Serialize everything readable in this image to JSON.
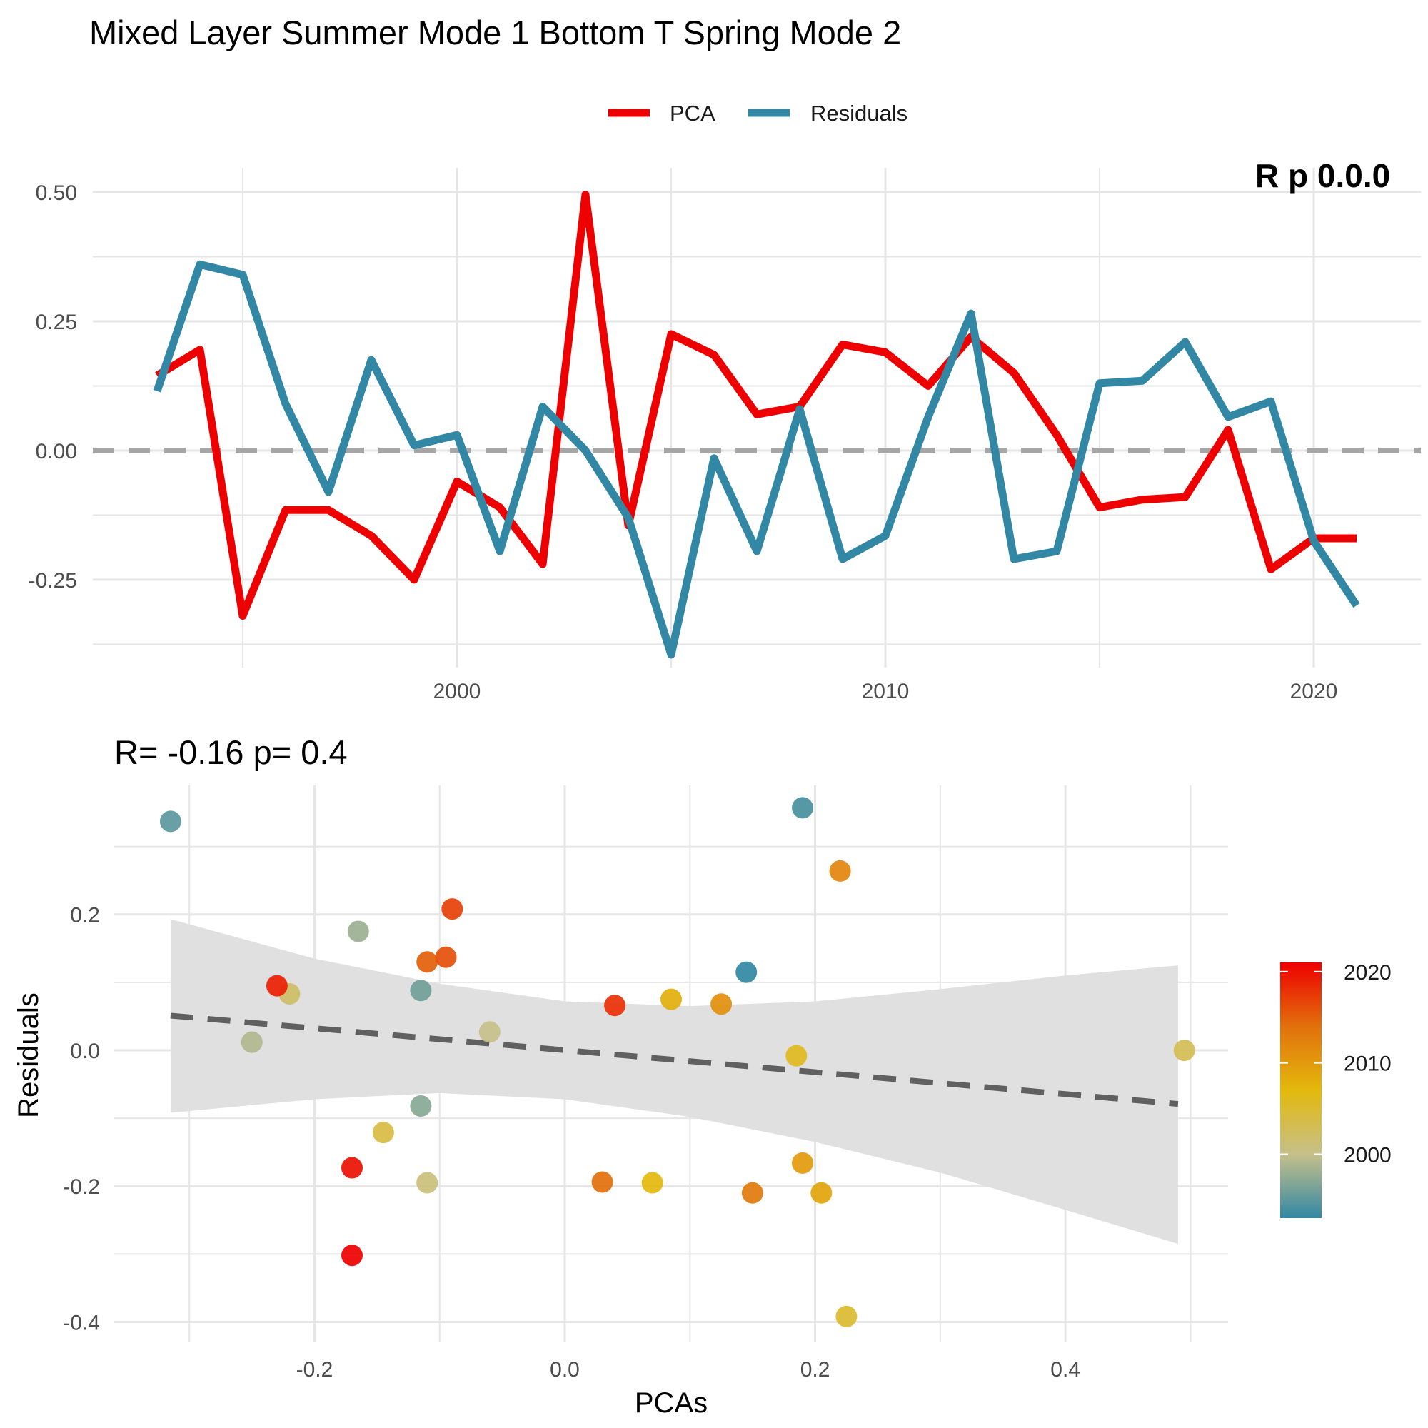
{
  "title": "Mixed Layer Summer Mode 1 Bottom T Spring Mode 2",
  "colors": {
    "pca": "#EE0000",
    "residuals": "#3288A4",
    "zero_line": "#A6A6A6",
    "grid": "#E6E6E6",
    "ribbon": "#E0E0E0",
    "fit_line": "#606060"
  },
  "chart_data": [
    {
      "type": "line",
      "title": "",
      "xlabel": "",
      "ylabel": "",
      "corner_annotation": "R  p  0.0.0",
      "xlim": [
        1991.5,
        2022.5
      ],
      "ylim": [
        -0.42,
        0.54
      ],
      "x_ticks": [
        2000,
        2010,
        2020
      ],
      "y_ticks": [
        -0.25,
        0.0,
        0.25,
        0.5
      ],
      "y_tick_labels": [
        "-0.25",
        "0.00",
        "0.25",
        "0.50"
      ],
      "legend": {
        "position": "top",
        "entries": [
          "PCA",
          "Residuals"
        ]
      },
      "grid": true,
      "zero_line": "dashed",
      "x": [
        1993,
        1994,
        1995,
        1996,
        1997,
        1998,
        1999,
        2000,
        2001,
        2002,
        2003,
        2004,
        2005,
        2006,
        2007,
        2008,
        2009,
        2010,
        2011,
        2012,
        2013,
        2014,
        2015,
        2016,
        2017,
        2018,
        2019,
        2020,
        2021
      ],
      "series": [
        {
          "name": "PCA",
          "values": [
            0.145,
            0.195,
            -0.32,
            -0.115,
            -0.115,
            -0.165,
            -0.25,
            -0.06,
            -0.11,
            -0.22,
            0.495,
            -0.145,
            0.225,
            0.185,
            0.07,
            0.085,
            0.205,
            0.19,
            0.125,
            0.22,
            0.15,
            0.03,
            -0.11,
            -0.095,
            -0.09,
            0.04,
            -0.23,
            -0.17,
            -0.17
          ]
        },
        {
          "name": "Residuals",
          "values": [
            0.115,
            0.36,
            0.34,
            0.09,
            -0.08,
            0.175,
            0.01,
            0.03,
            -0.195,
            0.085,
            0.0,
            -0.13,
            -0.395,
            -0.015,
            -0.195,
            0.08,
            -0.21,
            -0.165,
            0.065,
            0.265,
            -0.21,
            -0.195,
            0.13,
            0.135,
            0.21,
            0.065,
            0.095,
            -0.175,
            -0.3
          ]
        }
      ]
    },
    {
      "type": "scatter",
      "title": "R= -0.16  p= 0.4",
      "xlabel": "PCAs",
      "ylabel": "Residuals",
      "xlim": [
        -0.36,
        0.53
      ],
      "ylim": [
        -0.43,
        0.39
      ],
      "x_ticks": [
        -0.2,
        0.0,
        0.2,
        0.4
      ],
      "x_tick_labels": [
        "-0.2",
        "0.0",
        "0.2",
        "0.4"
      ],
      "y_ticks": [
        -0.4,
        -0.2,
        0.0,
        0.2
      ],
      "y_tick_labels": [
        "-0.4",
        "-0.2",
        "0.0",
        "0.2"
      ],
      "grid": true,
      "fit_line": {
        "x": [
          -0.315,
          0.49
        ],
        "y": [
          0.051,
          -0.079
        ],
        "style": "dashed"
      },
      "confidence_band": {
        "x": [
          -0.315,
          -0.2,
          -0.1,
          0.0,
          0.1,
          0.2,
          0.3,
          0.4,
          0.49
        ],
        "upper": [
          0.193,
          0.135,
          0.098,
          0.072,
          0.065,
          0.072,
          0.09,
          0.11,
          0.125
        ],
        "lower": [
          -0.092,
          -0.072,
          -0.063,
          -0.072,
          -0.098,
          -0.135,
          -0.18,
          -0.235,
          -0.285
        ]
      },
      "colorbar": {
        "label_ticks": [
          2000,
          2010,
          2020
        ],
        "range": [
          1993,
          2021
        ],
        "colors": [
          "#3288A4",
          "#C6C08A",
          "#E3B90C",
          "#E2700C",
          "#EE0000"
        ]
      },
      "points": [
        {
          "x": 0.145,
          "y": 0.115,
          "year": 1993
        },
        {
          "x": 0.19,
          "y": 0.357,
          "year": 1994
        },
        {
          "x": -0.315,
          "y": 0.337,
          "year": 1995
        },
        {
          "x": -0.115,
          "y": 0.088,
          "year": 1996
        },
        {
          "x": -0.115,
          "y": -0.082,
          "year": 1997
        },
        {
          "x": -0.165,
          "y": 0.175,
          "year": 1998
        },
        {
          "x": -0.25,
          "y": 0.012,
          "year": 1999
        },
        {
          "x": -0.06,
          "y": 0.027,
          "year": 2000
        },
        {
          "x": -0.11,
          "y": -0.195,
          "year": 2001
        },
        {
          "x": -0.22,
          "y": 0.083,
          "year": 2002
        },
        {
          "x": 0.495,
          "y": 0.0,
          "year": 2003
        },
        {
          "x": -0.145,
          "y": -0.121,
          "year": 2004
        },
        {
          "x": 0.225,
          "y": -0.392,
          "year": 2005
        },
        {
          "x": 0.185,
          "y": -0.008,
          "year": 2006
        },
        {
          "x": 0.07,
          "y": -0.195,
          "year": 2007
        },
        {
          "x": 0.085,
          "y": 0.075,
          "year": 2008
        },
        {
          "x": 0.205,
          "y": -0.21,
          "year": 2009
        },
        {
          "x": 0.19,
          "y": -0.166,
          "year": 2010
        },
        {
          "x": 0.125,
          "y": 0.068,
          "year": 2011
        },
        {
          "x": 0.22,
          "y": 0.264,
          "year": 2012
        },
        {
          "x": 0.15,
          "y": -0.21,
          "year": 2013
        },
        {
          "x": 0.03,
          "y": -0.194,
          "year": 2014
        },
        {
          "x": -0.11,
          "y": 0.13,
          "year": 2015
        },
        {
          "x": -0.095,
          "y": 0.137,
          "year": 2016
        },
        {
          "x": -0.09,
          "y": 0.208,
          "year": 2017
        },
        {
          "x": 0.04,
          "y": 0.066,
          "year": 2018
        },
        {
          "x": -0.23,
          "y": 0.095,
          "year": 2019
        },
        {
          "x": -0.17,
          "y": -0.173,
          "year": 2020
        },
        {
          "x": -0.17,
          "y": -0.302,
          "year": 2021
        }
      ]
    }
  ]
}
